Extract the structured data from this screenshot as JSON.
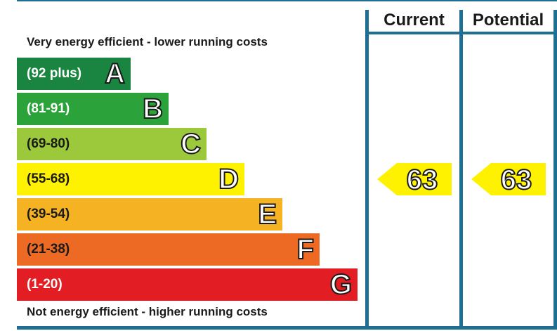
{
  "chart_data": {
    "type": "bar",
    "title": "",
    "header": {
      "current": "Current",
      "potential": "Potential"
    },
    "top_caption": "Very energy efficient - lower running costs",
    "bottom_caption": "Not energy efficient - higher running costs",
    "bands": [
      {
        "letter": "A",
        "range": "(92 plus)",
        "color": "#1a8441",
        "text_color": "#ffffff"
      },
      {
        "letter": "B",
        "range": "(81-91)",
        "color": "#2ca23b",
        "text_color": "#ffffff"
      },
      {
        "letter": "C",
        "range": "(69-80)",
        "color": "#9cc93b",
        "text_color": "#1a1a1a"
      },
      {
        "letter": "D",
        "range": "(55-68)",
        "color": "#fff200",
        "text_color": "#1a1a1a"
      },
      {
        "letter": "E",
        "range": "(39-54)",
        "color": "#f5b324",
        "text_color": "#1a1a1a"
      },
      {
        "letter": "F",
        "range": "(21-38)",
        "color": "#ec6a24",
        "text_color": "#1a1a1a"
      },
      {
        "letter": "G",
        "range": "(1-20)",
        "color": "#e31d24",
        "text_color": "#ffffff"
      }
    ],
    "current": {
      "value": "63",
      "band": "D",
      "color": "#fff200"
    },
    "potential": {
      "value": "63",
      "band": "D",
      "color": "#fff200"
    }
  }
}
